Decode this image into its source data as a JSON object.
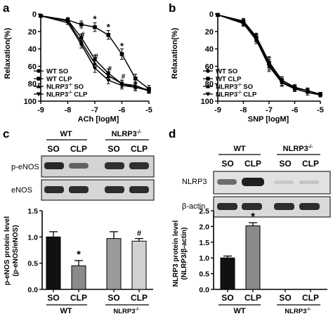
{
  "panels": {
    "a": {
      "letter": "a",
      "ylabel": "Relaxation(%)",
      "xlabel": "ACh [logM]",
      "legend": [
        "WT SO",
        "WT CLP",
        "NLRP3",
        "NLRP3",
        "SO",
        "CLP"
      ],
      "legend_sup": "-/-"
    },
    "b": {
      "letter": "b",
      "ylabel": "Relaxation(%)",
      "xlabel": "SNP [logM]"
    },
    "c": {
      "letter": "c",
      "group_wt": "WT",
      "group_ko": "NLRP3",
      "group_ko_sup": "-/-",
      "lanes": [
        "SO",
        "CLP",
        "SO",
        "CLP"
      ],
      "blot_labels": [
        "p-eNOS",
        "eNOS"
      ],
      "ylabel_1": "p-eNOS protein level",
      "ylabel_2": "(p-eNOS/eNOS)",
      "sig_star": "*",
      "sig_hash": "#"
    },
    "d": {
      "letter": "d",
      "group_wt": "WT",
      "group_ko": "NLRP3",
      "group_ko_sup": "-/-",
      "lanes": [
        "SO",
        "CLP",
        "SO",
        "CLP"
      ],
      "blot_labels": [
        "NLRP3",
        "β-actin"
      ],
      "ylabel_1": "NLRP3 protein level",
      "ylabel_2": "(NLRP3/β-actin)",
      "sig_star": "*"
    }
  },
  "chart_data": [
    {
      "panel": "a",
      "type": "line",
      "xlabel": "ACh [logM]",
      "ylabel": "Relaxation(%)",
      "x": [
        -9,
        -8,
        -7.5,
        -7,
        -6.5,
        -6,
        -5.5,
        -5
      ],
      "xlim": [
        -9,
        -5
      ],
      "ylim": [
        0,
        100
      ],
      "y_inverted": true,
      "xticks": [
        -9,
        -8,
        -7,
        -6,
        -5
      ],
      "yticks": [
        0,
        20,
        40,
        60,
        80,
        100
      ],
      "series": [
        {
          "name": "WT SO",
          "marker": "circle",
          "values": [
            2,
            7,
            27,
            52,
            68,
            80,
            84,
            88
          ],
          "errors": [
            1,
            2,
            4,
            5,
            5,
            4,
            4,
            3
          ]
        },
        {
          "name": "WT CLP",
          "marker": "square",
          "values": [
            2,
            7,
            12,
            15,
            24,
            46,
            74,
            86
          ],
          "errors": [
            1,
            3,
            4,
            5,
            5,
            6,
            5,
            4
          ]
        },
        {
          "name": "NLRP3-/- SO",
          "marker": "triangle-up",
          "values": [
            2,
            8,
            32,
            57,
            71,
            80,
            82,
            88
          ],
          "errors": [
            1,
            2,
            4,
            5,
            5,
            4,
            4,
            3
          ]
        },
        {
          "name": "NLRP3-/- CLP",
          "marker": "triangle-down",
          "values": [
            2,
            10,
            35,
            62,
            76,
            82,
            84,
            87
          ],
          "errors": [
            1,
            2,
            4,
            5,
            4,
            4,
            4,
            3
          ]
        }
      ],
      "annotations": [
        {
          "text": "*",
          "x": -7,
          "y": 15
        },
        {
          "text": "*",
          "x": -6.5,
          "y": 24
        },
        {
          "text": "*",
          "x": -6,
          "y": 46
        },
        {
          "text": "#",
          "x": -7.5,
          "y": 32
        },
        {
          "text": "#",
          "x": -7,
          "y": 57
        },
        {
          "text": "#",
          "x": -6.5,
          "y": 71
        },
        {
          "text": "#",
          "x": -6,
          "y": 80
        }
      ]
    },
    {
      "panel": "b",
      "type": "line",
      "xlabel": "SNP [logM]",
      "ylabel": "Relaxation(%)",
      "x": [
        -9,
        -8,
        -7.5,
        -7,
        -6.5,
        -6,
        -5.5,
        -5
      ],
      "xlim": [
        -9,
        -5
      ],
      "ylim": [
        0,
        100
      ],
      "y_inverted": true,
      "xticks": [
        -9,
        -8,
        -7,
        -6,
        -5
      ],
      "yticks": [
        0,
        20,
        40,
        60,
        80,
        100
      ],
      "series": [
        {
          "name": "WT SO",
          "marker": "circle",
          "values": [
            1,
            10,
            28,
            58,
            78,
            85,
            88,
            93
          ],
          "errors": [
            1,
            3,
            4,
            6,
            4,
            3,
            3,
            2
          ]
        },
        {
          "name": "WT CLP",
          "marker": "square",
          "values": [
            1,
            9,
            27,
            56,
            76,
            84,
            88,
            92
          ],
          "errors": [
            1,
            3,
            4,
            6,
            4,
            3,
            3,
            2
          ]
        },
        {
          "name": "NLRP3-/- SO",
          "marker": "triangle-up",
          "values": [
            1,
            8,
            26,
            55,
            76,
            84,
            88,
            92
          ],
          "errors": [
            1,
            3,
            4,
            6,
            4,
            3,
            3,
            2
          ]
        },
        {
          "name": "NLRP3-/- CLP",
          "marker": "triangle-down",
          "values": [
            1,
            11,
            30,
            60,
            79,
            86,
            90,
            93
          ],
          "errors": [
            1,
            3,
            4,
            6,
            4,
            3,
            3,
            2
          ]
        }
      ]
    },
    {
      "panel": "c",
      "type": "bar",
      "ylabel": "p-eNOS protein level (p-eNOS/eNOS)",
      "categories": [
        "SO",
        "CLP",
        "SO",
        "CLP"
      ],
      "groups": [
        "WT",
        "WT",
        "NLRP3-/-",
        "NLRP3-/-"
      ],
      "values": [
        1.0,
        0.45,
        0.97,
        0.92
      ],
      "errors": [
        0.1,
        0.1,
        0.13,
        0.05
      ],
      "colors": [
        "#111111",
        "#8a8a8a",
        "#9a9a9a",
        "#d2d2d2"
      ],
      "ylim": [
        0,
        1.5
      ],
      "yticks": [
        0.0,
        0.5,
        1.0,
        1.5
      ],
      "tick_labels": [
        "0.0",
        "0.5",
        "1.0",
        "1.5"
      ],
      "annotations": [
        {
          "text": "*",
          "bar": 1
        },
        {
          "text": "#",
          "bar": 3
        }
      ]
    },
    {
      "panel": "d",
      "type": "bar",
      "ylabel": "NLRP3 protein level (NLRP3/β-actin)",
      "categories": [
        "SO",
        "CLP",
        "SO",
        "CLP"
      ],
      "groups": [
        "WT",
        "WT",
        "NLRP3-/-",
        "NLRP3-/-"
      ],
      "values": [
        1.0,
        2.02,
        0,
        0
      ],
      "errors": [
        0.06,
        0.1,
        0,
        0
      ],
      "colors": [
        "#111111",
        "#8a8a8a",
        "#9a9a9a",
        "#d2d2d2"
      ],
      "ylim": [
        0,
        2.5
      ],
      "yticks": [
        0.0,
        0.5,
        1.0,
        1.5,
        2.0,
        2.5
      ],
      "tick_labels": [
        "0.0",
        "0.5",
        "1.0",
        "1.5",
        "2.0",
        "2.5"
      ],
      "annotations": [
        {
          "text": "*",
          "bar": 1
        }
      ]
    }
  ]
}
